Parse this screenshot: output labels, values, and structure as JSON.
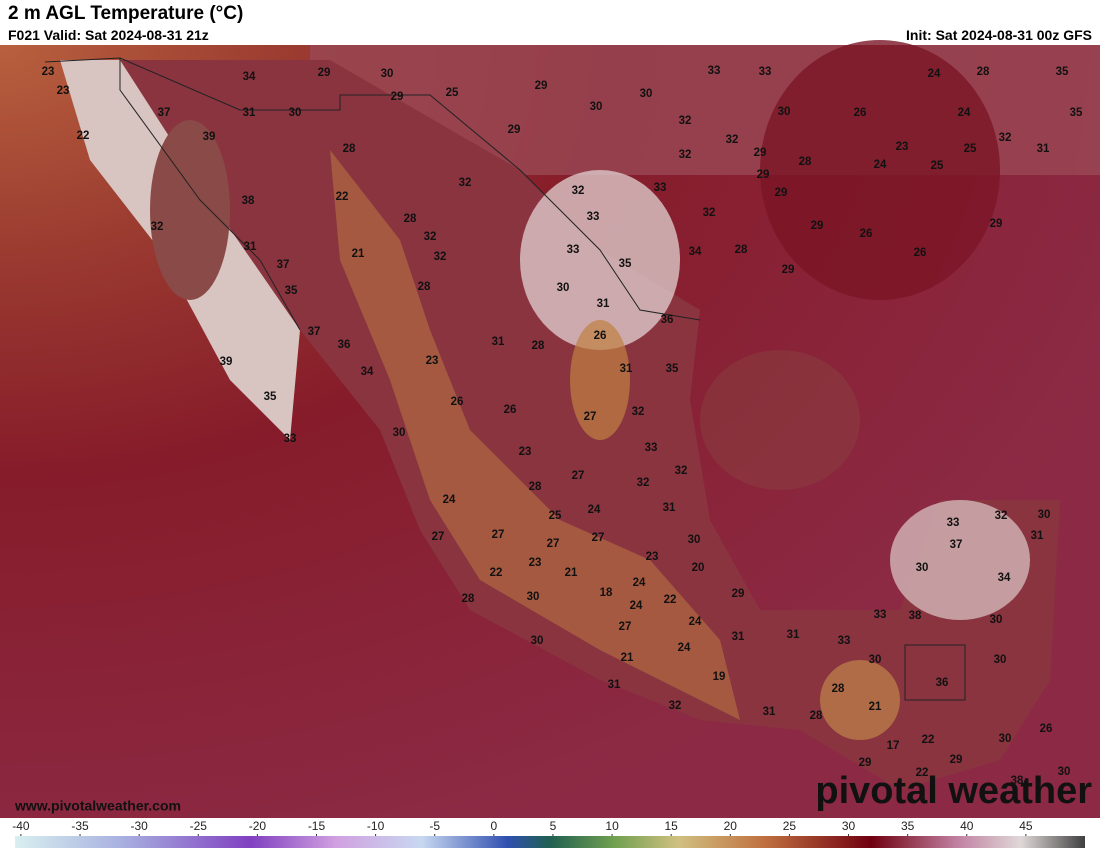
{
  "header": {
    "title": "2 m AGL Temperature (°C)",
    "valid": "F021 Valid: Sat 2024-08-31 21z",
    "init": "Init: Sat 2024-08-31 00z GFS"
  },
  "map": {
    "labels": [
      23,
      23,
      22,
      34,
      29,
      30,
      29,
      25,
      29,
      33,
      33,
      24,
      28,
      35,
      37,
      39,
      31,
      30,
      30,
      30,
      32,
      30,
      26,
      24,
      35,
      29,
      28,
      32,
      32,
      29,
      28,
      23,
      24,
      25,
      25,
      32,
      31,
      32,
      32,
      33,
      29,
      29,
      22,
      38,
      28,
      33,
      32,
      32,
      32,
      31,
      21,
      32,
      33,
      34,
      28,
      29,
      26,
      26,
      29,
      37,
      35,
      29,
      35,
      28,
      30,
      31,
      36,
      37,
      36,
      31,
      28,
      26,
      39,
      34,
      23,
      31,
      35,
      35,
      26,
      26,
      27,
      32,
      33,
      30,
      33,
      23,
      32,
      27,
      32,
      28,
      24,
      31,
      25,
      24,
      33,
      32,
      30,
      37,
      31,
      27,
      27,
      27,
      27,
      30,
      23,
      22,
      23,
      21,
      20,
      30,
      34,
      24,
      18,
      22,
      29,
      28,
      30,
      24,
      38,
      33,
      24,
      30,
      27,
      31,
      31,
      33,
      30,
      24,
      21,
      30,
      30,
      36,
      19,
      28,
      31,
      21,
      32,
      31,
      28,
      26,
      30,
      17,
      22,
      29,
      29,
      22,
      30,
      38
    ]
  },
  "colorbar": {
    "lim": [
      -40.5,
      50
    ],
    "ticks": [
      -40,
      -35,
      -30,
      -25,
      -20,
      -15,
      -10,
      -5,
      0,
      5,
      10,
      15,
      20,
      25,
      30,
      35,
      40,
      45
    ]
  },
  "footer": {
    "url": "www.pivotalweather.com",
    "logo": "pivotal weather"
  }
}
